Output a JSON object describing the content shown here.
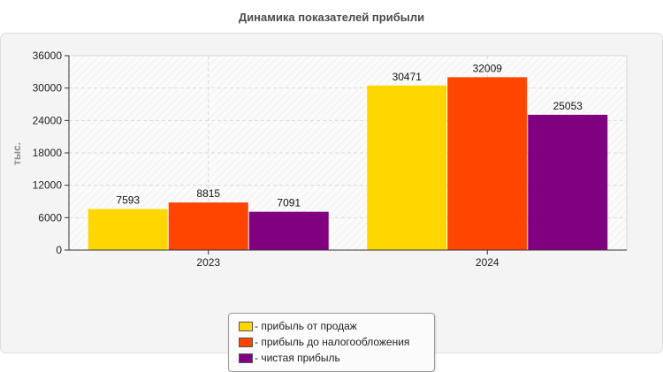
{
  "chart_data": {
    "type": "bar",
    "title": "Динамика показателей прибыли",
    "ylabel": "тыс.",
    "xlabel": "",
    "categories": [
      "2023",
      "2024"
    ],
    "ylim": [
      0,
      36000
    ],
    "yticks": [
      0,
      6000,
      12000,
      18000,
      24000,
      30000,
      36000
    ],
    "grid": true,
    "legend_position": "bottom",
    "series": [
      {
        "name": "- прибыль от продаж",
        "color": "#FFD700",
        "values": [
          7593,
          30471
        ]
      },
      {
        "name": "- прибыль до налогообложения",
        "color": "#FF4500",
        "values": [
          8815,
          32009
        ]
      },
      {
        "name": "- чистая прибыль",
        "color": "#800080",
        "values": [
          7091,
          25053
        ]
      }
    ]
  }
}
